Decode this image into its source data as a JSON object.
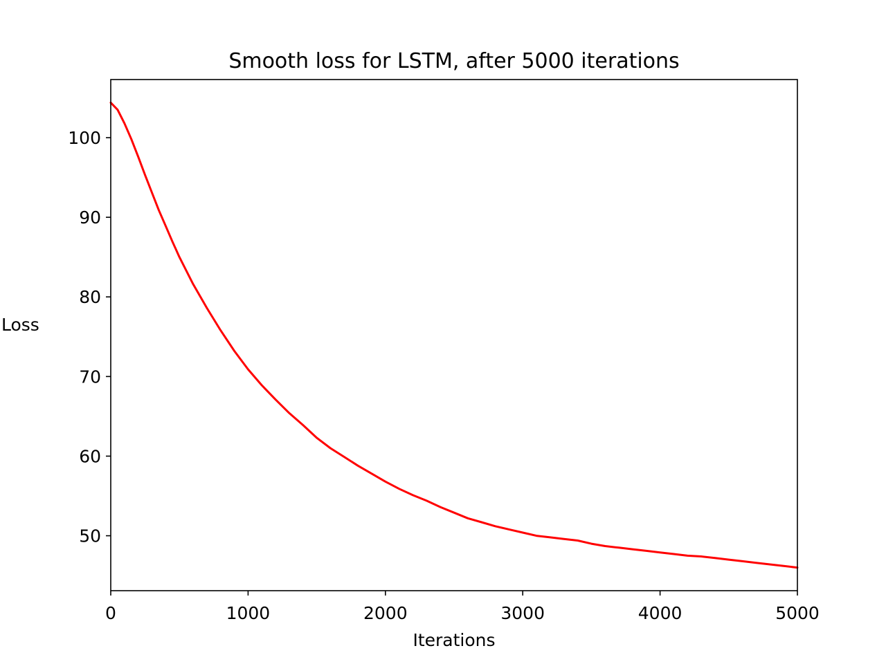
{
  "chart_data": {
    "type": "line",
    "title": "Smooth loss for LSTM, after 5000 iterations",
    "xlabel": "Iterations",
    "ylabel": "Loss",
    "xlim": [
      0,
      5000
    ],
    "ylim": [
      43.1,
      107.3
    ],
    "xticks": [
      0,
      1000,
      2000,
      3000,
      4000,
      5000
    ],
    "yticks": [
      50,
      60,
      70,
      80,
      90,
      100
    ],
    "grid": false,
    "legend": "none",
    "series": [
      {
        "color": "#ff0000",
        "x": [
          0,
          50,
          100,
          150,
          200,
          250,
          300,
          350,
          400,
          450,
          500,
          600,
          700,
          800,
          900,
          1000,
          1100,
          1200,
          1300,
          1400,
          1500,
          1600,
          1700,
          1800,
          1900,
          2000,
          2100,
          2200,
          2300,
          2400,
          2500,
          2600,
          2700,
          2800,
          2900,
          3000,
          3100,
          3200,
          3300,
          3400,
          3500,
          3600,
          3700,
          3800,
          3900,
          4000,
          4100,
          4200,
          4300,
          4400,
          4500,
          4600,
          4700,
          4800,
          4900,
          5000
        ],
        "values": [
          104.4,
          103.5,
          101.8,
          99.8,
          97.6,
          95.3,
          93.1,
          90.9,
          88.9,
          86.9,
          85.0,
          81.6,
          78.6,
          75.8,
          73.2,
          70.9,
          68.9,
          67.1,
          65.4,
          63.9,
          62.3,
          61.0,
          59.9,
          58.8,
          57.8,
          56.8,
          55.9,
          55.1,
          54.4,
          53.6,
          52.9,
          52.2,
          51.7,
          51.2,
          50.8,
          50.4,
          50.0,
          49.8,
          49.6,
          49.4,
          49.0,
          48.7,
          48.5,
          48.3,
          48.1,
          47.9,
          47.7,
          47.5,
          47.4,
          47.2,
          47.0,
          46.8,
          46.6,
          46.4,
          46.2,
          46.0
        ]
      }
    ]
  }
}
